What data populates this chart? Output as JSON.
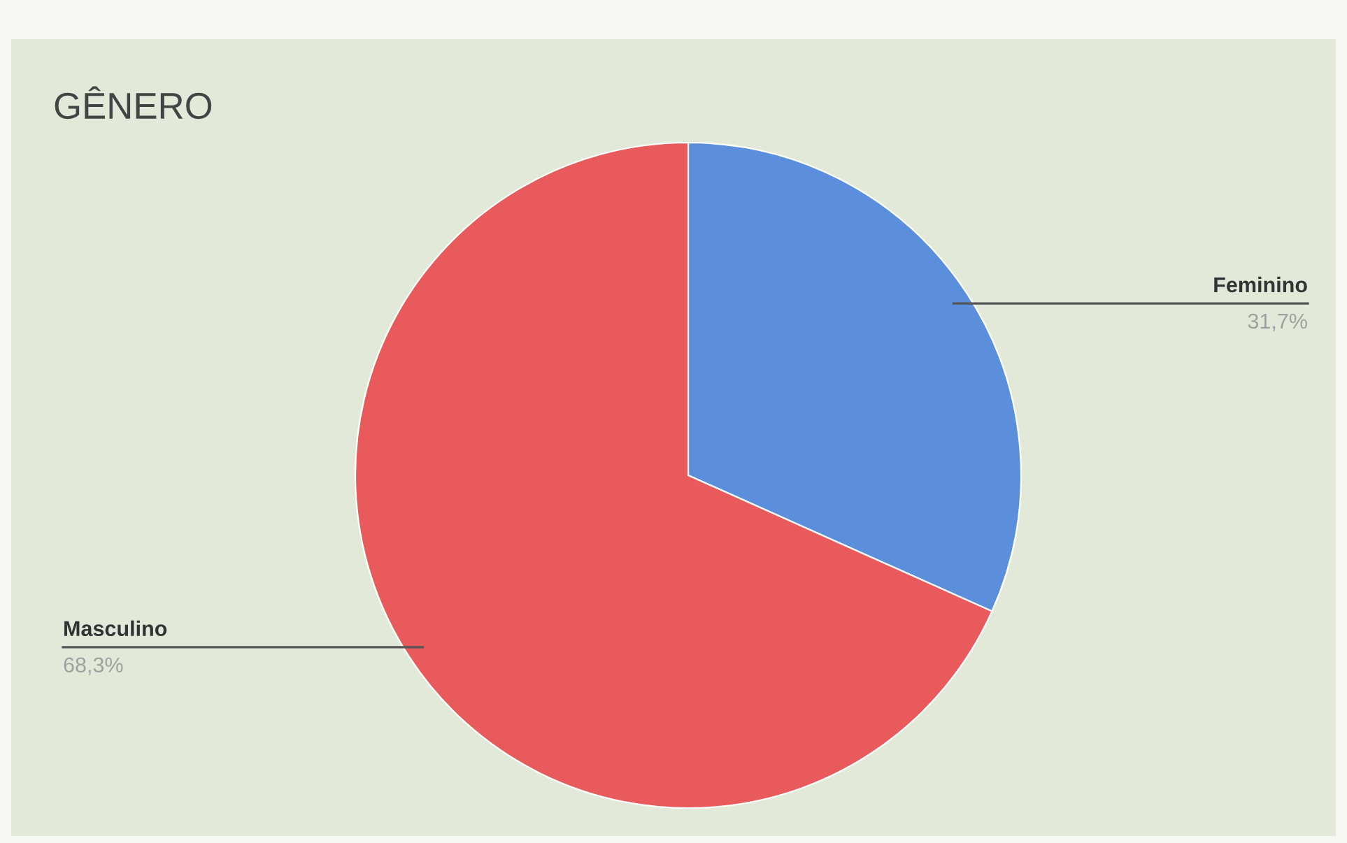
{
  "chart_data": {
    "type": "pie",
    "title": "GÊNERO",
    "categories": [
      "Feminino",
      "Masculino"
    ],
    "values": [
      31.7,
      68.3
    ],
    "colors": [
      "#5b8fdc",
      "#e85a5c"
    ],
    "value_labels": [
      "31,7%",
      "68,3%"
    ]
  }
}
